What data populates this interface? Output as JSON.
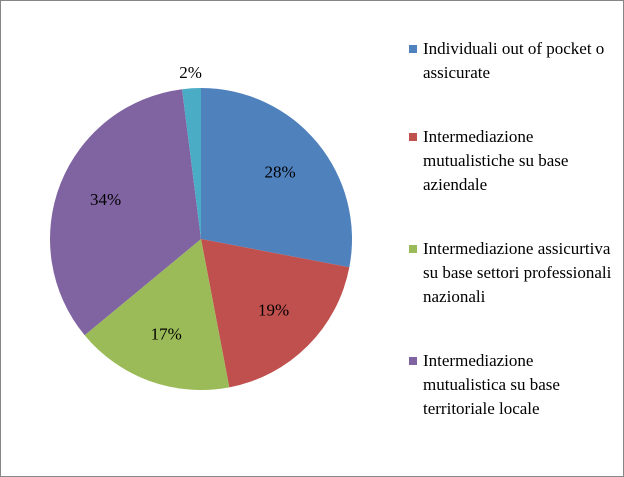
{
  "chart_data": {
    "type": "pie",
    "categories": [
      "Individuali out of pocket o assicurate",
      "Intermediazione mutualistiche su base aziendale",
      "Intermediazione assicurtiva su base settori professionali nazionali",
      "Intermediazione mutualistica su base territoriale locale",
      null
    ],
    "values": [
      28,
      19,
      17,
      34,
      2
    ],
    "value_labels": [
      "28%",
      "19%",
      "17%",
      "34%",
      "2%"
    ],
    "colors": [
      "#4f81bd",
      "#c0504d",
      "#9bbb59",
      "#8064a2",
      "#4bacc6"
    ],
    "legend": "right"
  }
}
